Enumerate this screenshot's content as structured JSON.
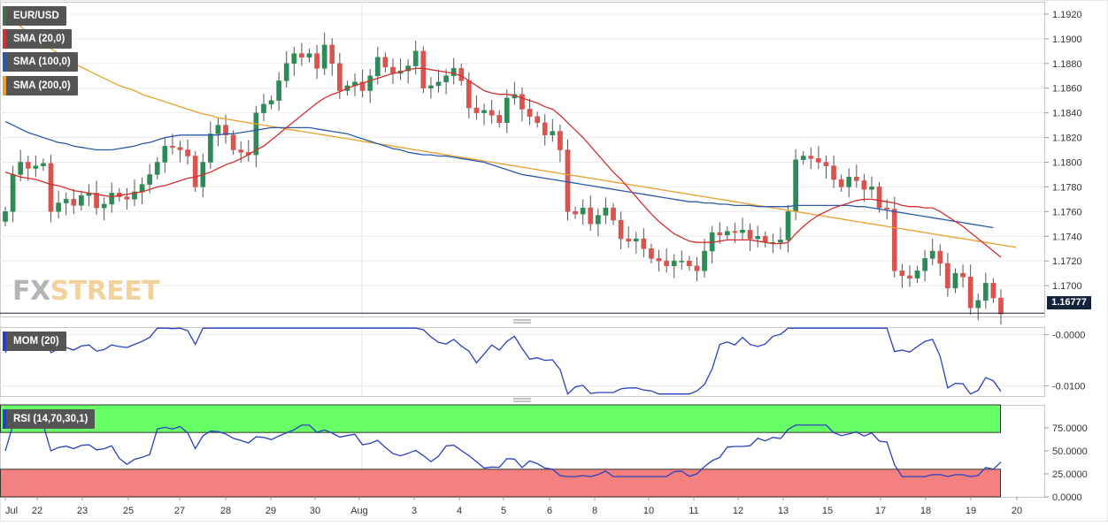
{
  "chart_data": [
    {
      "type": "candlestick",
      "symbol": "EUR/USD",
      "timeframe_note": "4h candles, late July to August 19",
      "ylim": [
        1.1675,
        1.193
      ],
      "y_ticks": [
        "1.1920",
        "1.1900",
        "1.1880",
        "1.1860",
        "1.1840",
        "1.1820",
        "1.1800",
        "1.1780",
        "1.1760",
        "1.1740",
        "1.1720",
        "1.1700"
      ],
      "last_price": "1.16777",
      "x_ticks": [
        "Jul",
        "22",
        "23",
        "25",
        "27",
        "28",
        "29",
        "30",
        "Aug",
        "3",
        "4",
        "5",
        "6",
        "8",
        "10",
        "11",
        "12",
        "13",
        "15",
        "17",
        "18",
        "19",
        "20"
      ],
      "legend": [
        {
          "label": "EUR/USD",
          "color": "#4a6a4a"
        },
        {
          "label": "SMA (20,0)",
          "color": "#d03030"
        },
        {
          "label": "SMA (100,0)",
          "color": "#2a5aa8"
        },
        {
          "label": "SMA (200,0)",
          "color": "#e8a030"
        }
      ],
      "closes": [
        1.176,
        1.179,
        1.18,
        1.1795,
        1.1797,
        1.1799,
        1.176,
        1.1767,
        1.177,
        1.1765,
        1.1773,
        1.1775,
        1.1763,
        1.1766,
        1.1775,
        1.1772,
        1.177,
        1.1776,
        1.1782,
        1.179,
        1.18,
        1.1813,
        1.1812,
        1.181,
        1.1805,
        1.178,
        1.18,
        1.1823,
        1.183,
        1.1822,
        1.181,
        1.1808,
        1.1806,
        1.184,
        1.1847,
        1.185,
        1.1866,
        1.188,
        1.1888,
        1.1885,
        1.1888,
        1.1876,
        1.1895,
        1.188,
        1.1858,
        1.1862,
        1.1865,
        1.1858,
        1.187,
        1.1885,
        1.1877,
        1.1872,
        1.1874,
        1.1878,
        1.189,
        1.186,
        1.1862,
        1.1865,
        1.187,
        1.1876,
        1.1866,
        1.1844,
        1.184,
        1.1842,
        1.1838,
        1.1832,
        1.1852,
        1.1855,
        1.1843,
        1.1837,
        1.1832,
        1.1822,
        1.1825,
        1.181,
        1.176,
        1.1758,
        1.1763,
        1.175,
        1.1757,
        1.1763,
        1.1753,
        1.1738,
        1.1736,
        1.1738,
        1.173,
        1.1722,
        1.172,
        1.1716,
        1.172,
        1.172,
        1.1716,
        1.1712,
        1.1728,
        1.1743,
        1.1741,
        1.1744,
        1.1743,
        1.1745,
        1.1738,
        1.174,
        1.1735,
        1.1735,
        1.1737,
        1.176,
        1.1802,
        1.1805,
        1.1803,
        1.18,
        1.1797,
        1.1786,
        1.178,
        1.1788,
        1.1785,
        1.1778,
        1.178,
        1.1763,
        1.1762,
        1.1712,
        1.1708,
        1.1706,
        1.1712,
        1.1722,
        1.1728,
        1.1718,
        1.1698,
        1.171,
        1.1707,
        1.1682,
        1.1688,
        1.1702,
        1.169,
        1.1677
      ],
      "sma20_approx": [
        1.1792,
        1.179,
        1.1788,
        1.1787,
        1.1786,
        1.1784,
        1.1782,
        1.1781,
        1.1779,
        1.1777,
        1.1776,
        1.1775,
        1.1774,
        1.1773,
        1.1772,
        1.1773,
        1.1774,
        1.1775,
        1.1776,
        1.1778,
        1.178,
        1.1781,
        1.1783,
        1.1785,
        1.1787,
        1.1788,
        1.179,
        1.1792,
        1.1795,
        1.1798,
        1.18,
        1.1803,
        1.1806,
        1.181,
        1.1813,
        1.1818,
        1.1823,
        1.1828,
        1.1833,
        1.1838,
        1.1843,
        1.1848,
        1.1852,
        1.1855,
        1.1857,
        1.186,
        1.1862,
        1.1864,
        1.1866,
        1.1868,
        1.187,
        1.1872,
        1.1873,
        1.1875,
        1.1876,
        1.1876,
        1.1875,
        1.1874,
        1.1873,
        1.1872,
        1.187,
        1.1866,
        1.1862,
        1.1858,
        1.1856,
        1.1855,
        1.1855,
        1.1854,
        1.1852,
        1.185,
        1.1848,
        1.1845,
        1.1843,
        1.1838,
        1.1832,
        1.1826,
        1.182,
        1.1813,
        1.1806,
        1.1799,
        1.1792,
        1.1786,
        1.1779,
        1.1772,
        1.1765,
        1.1758,
        1.1752,
        1.1747,
        1.1742,
        1.1739,
        1.1736,
        1.1735,
        1.1735,
        1.1735,
        1.1736,
        1.1737,
        1.1737,
        1.1737,
        1.1737,
        1.1736,
        1.1735,
        1.1734,
        1.1734,
        1.1735,
        1.1742,
        1.1748,
        1.1753,
        1.1757,
        1.176,
        1.1763,
        1.1765,
        1.1767,
        1.1769,
        1.177,
        1.177,
        1.1769,
        1.1768,
        1.1767,
        1.1765,
        1.1764,
        1.1764,
        1.1763,
        1.1763,
        1.176,
        1.1756,
        1.1752,
        1.1748,
        1.1743,
        1.1738,
        1.1733,
        1.1728,
        1.1723
      ],
      "sma100_approx": [
        1.1833,
        1.183,
        1.1827,
        1.1824,
        1.1822,
        1.182,
        1.1818,
        1.1816,
        1.1815,
        1.1813,
        1.1812,
        1.1811,
        1.181,
        1.181,
        1.181,
        1.1811,
        1.1812,
        1.1813,
        1.1815,
        1.1816,
        1.1818,
        1.182,
        1.1821,
        1.1822,
        1.1822,
        1.1822,
        1.1822,
        1.1822,
        1.1822,
        1.1823,
        1.1823,
        1.1824,
        1.1825,
        1.1826,
        1.1827,
        1.1828,
        1.1828,
        1.1828,
        1.1828,
        1.1828,
        1.1828,
        1.1827,
        1.1826,
        1.1825,
        1.1824,
        1.1823,
        1.1821,
        1.1819,
        1.1817,
        1.1815,
        1.1813,
        1.1811,
        1.181,
        1.1808,
        1.1807,
        1.1806,
        1.1806,
        1.1805,
        1.1805,
        1.1804,
        1.1803,
        1.1802,
        1.1801,
        1.18,
        1.1798,
        1.1796,
        1.1794,
        1.1792,
        1.179,
        1.1789,
        1.1788,
        1.1787,
        1.1786,
        1.1785,
        1.1784,
        1.1783,
        1.1782,
        1.1781,
        1.178,
        1.1779,
        1.1778,
        1.1777,
        1.1776,
        1.1775,
        1.1774,
        1.1773,
        1.1772,
        1.1771,
        1.177,
        1.1769,
        1.1768,
        1.1768,
        1.1767,
        1.1767,
        1.1766,
        1.1766,
        1.1765,
        1.1765,
        1.1765,
        1.1764,
        1.1764,
        1.1764,
        1.1764,
        1.1764,
        1.1765,
        1.1765,
        1.1765,
        1.1765,
        1.1765,
        1.1765,
        1.1765,
        1.1765,
        1.1764,
        1.1764,
        1.1763,
        1.1762,
        1.1761,
        1.176,
        1.1759,
        1.1758,
        1.1757,
        1.1756,
        1.1755,
        1.1754,
        1.1753,
        1.1752,
        1.1751,
        1.175,
        1.1749,
        1.1748,
        1.1747
      ],
      "sma200_approx": [
        1.192,
        1.1915,
        1.191,
        1.1905,
        1.19,
        1.1896,
        1.1892,
        1.1888,
        1.1884,
        1.188,
        1.1877,
        1.1874,
        1.1871,
        1.1868,
        1.1865,
        1.1862,
        1.186,
        1.1858,
        1.1855,
        1.1853,
        1.1851,
        1.1849,
        1.1847,
        1.1845,
        1.1843,
        1.1841,
        1.1839,
        1.1838,
        1.1836,
        1.1835,
        1.1834,
        1.1833,
        1.1832,
        1.1831,
        1.183,
        1.1829,
        1.1828,
        1.1827,
        1.1826,
        1.1825,
        1.1824,
        1.1823,
        1.1822,
        1.1821,
        1.182,
        1.1819,
        1.1818,
        1.1817,
        1.1816,
        1.1815,
        1.1814,
        1.1813,
        1.1812,
        1.1811,
        1.181,
        1.1809,
        1.1808,
        1.1807,
        1.1806,
        1.1805,
        1.1804,
        1.1803,
        1.1802,
        1.1801,
        1.18,
        1.1799,
        1.1798,
        1.1797,
        1.1796,
        1.1795,
        1.1794,
        1.1793,
        1.1792,
        1.1791,
        1.179,
        1.1789,
        1.1788,
        1.1787,
        1.1786,
        1.1785,
        1.1784,
        1.1783,
        1.1782,
        1.1781,
        1.178,
        1.1779,
        1.1778,
        1.1777,
        1.1776,
        1.1775,
        1.1774,
        1.1773,
        1.1772,
        1.1771,
        1.177,
        1.1769,
        1.1768,
        1.1767,
        1.1766,
        1.1765,
        1.1764,
        1.1763,
        1.1762,
        1.1761,
        1.176,
        1.1759,
        1.1758,
        1.1757,
        1.1756,
        1.1755,
        1.1754,
        1.1753,
        1.1752,
        1.1751,
        1.175,
        1.1749,
        1.1748,
        1.1747,
        1.1746,
        1.1745,
        1.1744,
        1.1743,
        1.1742,
        1.1741,
        1.174,
        1.1739,
        1.1738,
        1.1737,
        1.1736,
        1.1735,
        1.1734,
        1.1733,
        1.1732,
        1.1731
      ]
    },
    {
      "type": "line",
      "title": "MOM (20)",
      "ylim": [
        -0.012,
        0.0015
      ],
      "y_ticks": [
        "-0.0000",
        "-0.0100"
      ],
      "series": [
        {
          "name": "MOM (20)",
          "color": "#2a3fbf"
        }
      ],
      "values_approx": "momentum oscillator, -0.0115 to +0.0010"
    },
    {
      "type": "line",
      "title": "RSI (14,70,30,1)",
      "ylim": [
        0,
        100
      ],
      "y_ticks": [
        "75.0000",
        "50.0000",
        "25.0000",
        "0.0000"
      ],
      "overbought": 70,
      "oversold": 30,
      "series": [
        {
          "name": "RSI (14,70,30,1)",
          "color": "#2a3fbf"
        }
      ],
      "values_approx": "ranges from about 23 to 77"
    }
  ],
  "colors": {
    "bull": "#2e8b57",
    "bear": "#d9534f",
    "sma20": "#d03030",
    "sma100": "#2a5aa8",
    "sma200": "#e8a030",
    "mom": "#2a3fbf",
    "rsi_ob": "#66ff66",
    "rsi_os": "#f58080"
  },
  "watermark": {
    "fx": "FX",
    "street": "STREET"
  }
}
